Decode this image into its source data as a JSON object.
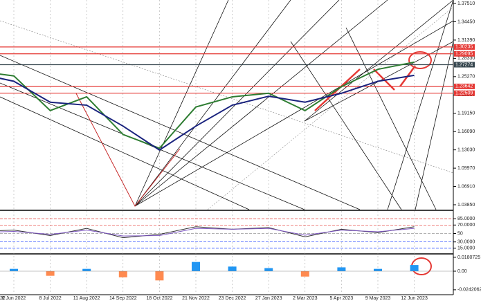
{
  "chart_data": [
    {
      "type": "line",
      "categories": [
        "22",
        "6 Jun 2022",
        "8 Jul 2022",
        "11 Aug 2022",
        "14 Sep 2022",
        "18 Oct 2022",
        "21 Nov 2022",
        "23 Dec 2022",
        "27 Jan 2023",
        "2 Mar 2023",
        "5 Apr 2023",
        "9 May 2023",
        "12 Jun 2023"
      ],
      "series": [
        {
          "color": "#2e7d32",
          "values": [
            1.262,
            1.254,
            1.196,
            1.219,
            1.156,
            1.133,
            1.202,
            1.219,
            1.225,
            1.196,
            1.236,
            1.265,
            1.277
          ]
        },
        {
          "color": "#1a237e",
          "values": [
            1.258,
            1.245,
            1.21,
            1.205,
            1.17,
            1.13,
            1.17,
            1.205,
            1.22,
            1.21,
            1.225,
            1.245,
            1.255
          ]
        }
      ],
      "ylim": [
        1.0304,
        1.3809
      ],
      "yticks": [
        {
          "value": 1.3751,
          "label": "1.37510"
        },
        {
          "value": 1.3445,
          "label": "1.34450"
        },
        {
          "value": 1.3139,
          "label": "1.31390"
        },
        {
          "value": 1.2833,
          "label": "1.28330"
        },
        {
          "value": 1.2527,
          "label": "1.25270"
        },
        {
          "value": 1.2221,
          "label": "1.22210"
        },
        {
          "value": 1.1915,
          "label": "1.19150"
        },
        {
          "value": 1.1609,
          "label": "1.16090"
        },
        {
          "value": 1.1303,
          "label": "1.13030"
        },
        {
          "value": 1.0997,
          "label": "1.09970"
        },
        {
          "value": 1.0691,
          "label": "1.06910"
        },
        {
          "value": 1.0385,
          "label": "1.03850"
        }
      ],
      "levels": [
        {
          "value": 1.30235,
          "label": "1.30235",
          "color": "#e53935"
        },
        {
          "value": 1.29095,
          "label": "1.29095",
          "color": "#e53935"
        },
        {
          "value": 1.27274,
          "label": "1.27274",
          "color": "#37474f"
        },
        {
          "value": 1.23642,
          "label": "1.23642",
          "color": "#e53935"
        },
        {
          "value": 1.22509,
          "label": "1.22509",
          "color": "#e53935"
        }
      ]
    },
    {
      "type": "line",
      "series": [
        {
          "color": "#333333",
          "values": [
            55,
            58,
            45,
            62,
            40,
            48,
            66,
            60,
            64,
            42,
            60,
            52,
            66
          ]
        },
        {
          "color": "#7e57c2",
          "values": [
            52,
            55,
            48,
            58,
            44,
            45,
            62,
            60,
            62,
            46,
            58,
            54,
            62
          ]
        }
      ],
      "ylim": [
        0,
        100
      ],
      "yticks": [
        {
          "value": 85,
          "label": "85.0000"
        },
        {
          "value": 70,
          "label": "70.0000"
        },
        50,
        {
          "value": 30,
          "label": "30.0000"
        },
        {
          "value": 15,
          "label": "15.0000"
        }
      ]
    },
    {
      "type": "bar",
      "values": [
        0.004,
        0.003,
        -0.006,
        0.003,
        -0.008,
        -0.012,
        0.012,
        0.006,
        0.004,
        -0.007,
        0.005,
        0.003,
        0.008
      ],
      "ylim": [
        -0.0297,
        0.0216
      ],
      "yticks": [
        {
          "value": 0.0180725,
          "label": "0.0180725"
        },
        {
          "value": 0,
          "label": "0.00"
        },
        {
          "value": -0.0242062,
          "label": "-0.0242062"
        }
      ]
    }
  ]
}
